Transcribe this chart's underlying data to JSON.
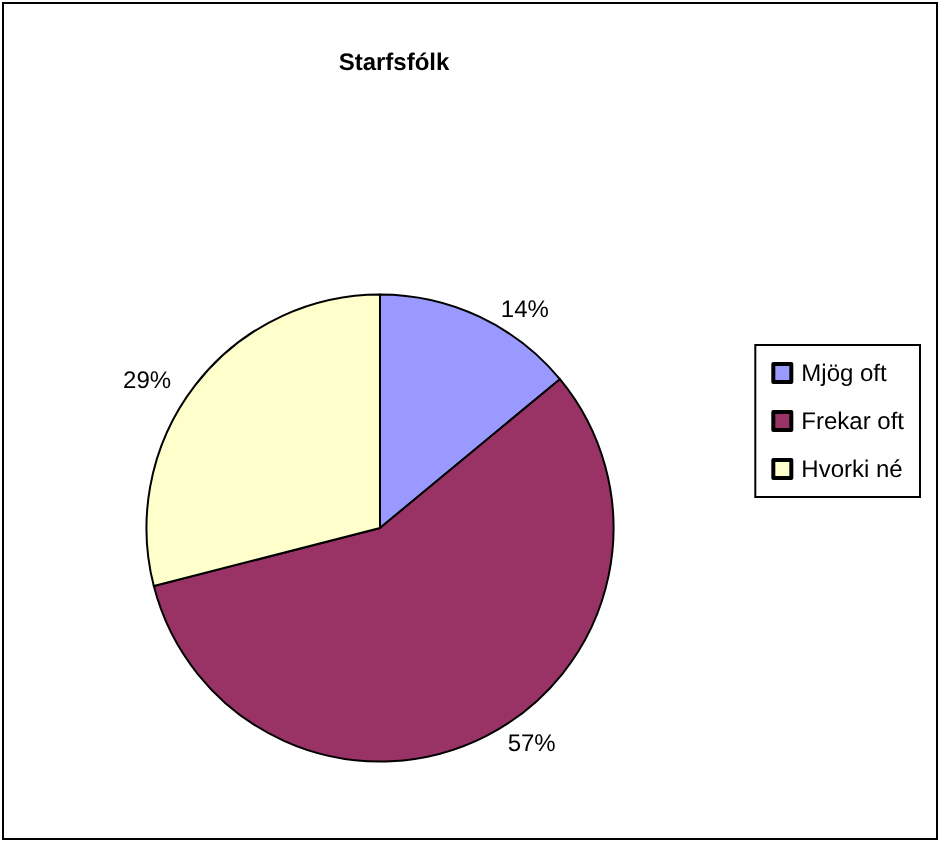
{
  "chart_data": {
    "type": "pie",
    "title": "Starfsfólk",
    "categories": [
      "Mjög oft",
      "Frekar oft",
      "Hvorki né"
    ],
    "values": [
      14,
      57,
      29
    ],
    "colors": [
      "#9999ff",
      "#993366",
      "#ffffcc"
    ],
    "value_labels": [
      "14%",
      "57%",
      "29%"
    ],
    "legend": "right"
  }
}
